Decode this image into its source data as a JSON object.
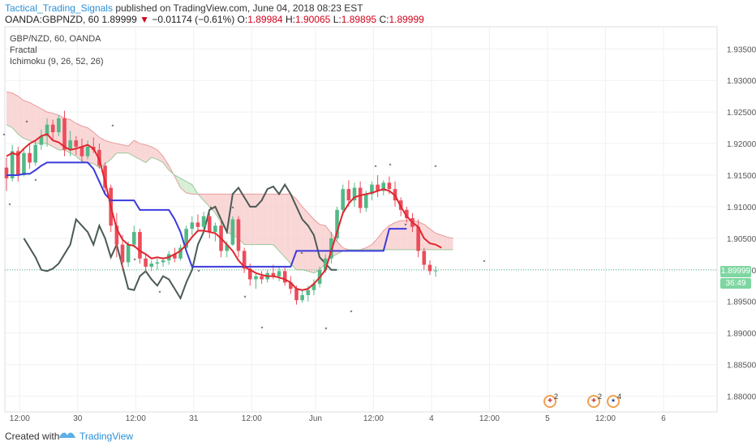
{
  "header": {
    "author": "Tactical_Trading_Signals",
    "published": "published on TradingView.com, June 04, 2018 08:23 EST"
  },
  "ohlc": {
    "symbol": "OANDA:GBPNZD, 60",
    "last": "1.89999",
    "change": "−0.01174 (−0.61%)",
    "o_label": "O:",
    "o": "1.89984",
    "h_label": "H:",
    "h": "1.90065",
    "l_label": "L:",
    "l": "1.89895",
    "c_label": "C:",
    "c": "1.89999"
  },
  "legend": {
    "line1": "GBP/NZD, 60, OANDA",
    "line2": "Fractal",
    "line3": "Ichimoku (9, 26, 52, 26)"
  },
  "price_tag": "1.89999",
  "time_tag": "36:49",
  "events": [
    {
      "label": "2",
      "icon": "gb-flag-icon"
    },
    {
      "label": "2",
      "icon": "gb-flag-icon"
    },
    {
      "label": "4",
      "icon": "nz-flag-icon"
    }
  ],
  "footer": {
    "created": "Created with",
    "brand": "TradingView"
  },
  "colors": {
    "up": "#53b987",
    "down": "#eb4d5c",
    "conversion": "#e0262f",
    "base": "#3b3bdb",
    "lagging": "#4a5a55",
    "cloud_bear": "#f8c9c9",
    "cloud_bull": "#c8ebc8"
  },
  "chart_data": {
    "type": "candlestick",
    "x_ticks": [
      "12:00",
      "30",
      "12:00",
      "31",
      "12:00",
      "Jun",
      "12:00",
      "4",
      "12:00",
      "5",
      "12:00",
      "6"
    ],
    "y_ticks": [
      "1.93500",
      "1.93000",
      "1.92500",
      "1.92000",
      "1.91500",
      "1.91000",
      "1.90500",
      "1.90000",
      "1.89500",
      "1.89000",
      "1.88500",
      "1.88000"
    ],
    "ylim": [
      1.8775,
      1.9385
    ],
    "last_price": 1.89999,
    "candles": [
      [
        1.9162,
        1.9178,
        1.9125,
        1.9145
      ],
      [
        1.9145,
        1.9198,
        1.914,
        1.9188
      ],
      [
        1.9188,
        1.9195,
        1.914,
        1.915
      ],
      [
        1.915,
        1.9192,
        1.9148,
        1.9185
      ],
      [
        1.9185,
        1.92,
        1.916,
        1.917
      ],
      [
        1.917,
        1.9205,
        1.9165,
        1.9198
      ],
      [
        1.9198,
        1.9222,
        1.919,
        1.9212
      ],
      [
        1.9212,
        1.924,
        1.9195,
        1.923
      ],
      [
        1.923,
        1.9238,
        1.9205,
        1.9218
      ],
      [
        1.9218,
        1.9245,
        1.9212,
        1.924
      ],
      [
        1.924,
        1.9252,
        1.918,
        1.919
      ],
      [
        1.919,
        1.922,
        1.918,
        1.9205
      ],
      [
        1.9205,
        1.9212,
        1.9182,
        1.9195
      ],
      [
        1.9195,
        1.9208,
        1.917,
        1.918
      ],
      [
        1.918,
        1.9205,
        1.9175,
        1.9195
      ],
      [
        1.9195,
        1.921,
        1.9185,
        1.919
      ],
      [
        1.919,
        1.92,
        1.916,
        1.9165
      ],
      [
        1.9165,
        1.917,
        1.912,
        1.913
      ],
      [
        1.913,
        1.9135,
        1.906,
        1.907
      ],
      [
        1.907,
        1.909,
        1.902,
        1.904
      ],
      [
        1.904,
        1.9055,
        1.9,
        1.9012
      ],
      [
        1.9012,
        1.9045,
        1.9005,
        1.904
      ],
      [
        1.904,
        1.907,
        1.9035,
        1.906
      ],
      [
        1.906,
        1.9065,
        1.901,
        1.9018
      ],
      [
        1.9018,
        1.9025,
        1.8995,
        1.9005
      ],
      [
        1.9005,
        1.9015,
        1.8998,
        1.901
      ],
      [
        1.901,
        1.9018,
        1.9,
        1.9012
      ],
      [
        1.9012,
        1.902,
        1.9005,
        1.9015
      ],
      [
        1.9015,
        1.903,
        1.9008,
        1.9025
      ],
      [
        1.9025,
        1.9035,
        1.9012,
        1.9018
      ],
      [
        1.9018,
        1.904,
        1.9015,
        1.9035
      ],
      [
        1.9035,
        1.907,
        1.903,
        1.9065
      ],
      [
        1.9065,
        1.9085,
        1.9055,
        1.9075
      ],
      [
        1.9075,
        1.9088,
        1.906,
        1.9068
      ],
      [
        1.9068,
        1.9092,
        1.906,
        1.9085
      ],
      [
        1.9085,
        1.909,
        1.905,
        1.906
      ],
      [
        1.906,
        1.9075,
        1.9045,
        1.907
      ],
      [
        1.907,
        1.908,
        1.902,
        1.903
      ],
      [
        1.903,
        1.9045,
        1.902,
        1.904
      ],
      [
        1.904,
        1.9085,
        1.9038,
        1.908
      ],
      [
        1.908,
        1.9085,
        1.902,
        1.903
      ],
      [
        1.903,
        1.9035,
        1.8995,
        1.9002
      ],
      [
        1.9002,
        1.901,
        1.8975,
        1.8985
      ],
      [
        1.8985,
        1.8995,
        1.897,
        1.899
      ],
      [
        1.899,
        1.8998,
        1.8978,
        1.8985
      ],
      [
        1.8985,
        1.9,
        1.898,
        1.8995
      ],
      [
        1.8995,
        1.9008,
        1.8985,
        1.899
      ],
      [
        1.899,
        1.9005,
        1.8982,
        1.8998
      ],
      [
        1.8998,
        1.9005,
        1.8975,
        1.898
      ],
      [
        1.898,
        1.899,
        1.8962,
        1.897
      ],
      [
        1.897,
        1.8975,
        1.8945,
        1.8952
      ],
      [
        1.8952,
        1.8968,
        1.8948,
        1.896
      ],
      [
        1.896,
        1.8975,
        1.895,
        1.8968
      ],
      [
        1.8968,
        1.8985,
        1.896,
        1.8978
      ],
      [
        1.8978,
        1.9005,
        1.8972,
        1.9
      ],
      [
        1.9,
        1.9025,
        1.8995,
        1.9018
      ],
      [
        1.9018,
        1.906,
        1.901,
        1.905
      ],
      [
        1.905,
        1.91,
        1.9045,
        1.9095
      ],
      [
        1.9095,
        1.9135,
        1.909,
        1.9128
      ],
      [
        1.9128,
        1.9142,
        1.91,
        1.911
      ],
      [
        1.911,
        1.9138,
        1.91,
        1.913
      ],
      [
        1.913,
        1.914,
        1.909,
        1.9098
      ],
      [
        1.9098,
        1.9125,
        1.9092,
        1.912
      ],
      [
        1.912,
        1.914,
        1.911,
        1.9135
      ],
      [
        1.9135,
        1.915,
        1.9115,
        1.9125
      ],
      [
        1.9125,
        1.9142,
        1.9118,
        1.9138
      ],
      [
        1.9138,
        1.9148,
        1.912,
        1.9128
      ],
      [
        1.9128,
        1.914,
        1.91,
        1.911
      ],
      [
        1.911,
        1.9115,
        1.9085,
        1.9095
      ],
      [
        1.9095,
        1.91,
        1.9075,
        1.9082
      ],
      [
        1.9082,
        1.909,
        1.906,
        1.9068
      ],
      [
        1.9068,
        1.908,
        1.902,
        1.903
      ],
      [
        1.903,
        1.9035,
        1.9,
        1.9008
      ],
      [
        1.9008,
        1.9015,
        1.8992,
        1.8998
      ],
      [
        1.8998,
        1.9006,
        1.8989,
        1.8999
      ]
    ],
    "conversion_line": [
      1.918,
      1.9185,
      1.9182,
      1.9192,
      1.92,
      1.9205,
      1.9212,
      1.9215,
      1.9205,
      1.9202,
      1.9195,
      1.919,
      1.9192,
      1.9195,
      1.9198,
      1.9192,
      1.9175,
      1.914,
      1.91,
      1.9065,
      1.9048,
      1.904,
      1.9038,
      1.903,
      1.9025,
      1.9018,
      1.902,
      1.9018,
      1.902,
      1.9025,
      1.903,
      1.904,
      1.9052,
      1.9062,
      1.9062,
      1.906,
      1.9058,
      1.905,
      1.904,
      1.903,
      1.9015,
      1.9005,
      1.9,
      1.8995,
      1.8992,
      1.899,
      1.899,
      1.8988,
      1.8985,
      1.898,
      1.897,
      1.8968,
      1.897,
      1.8978,
      1.8988,
      1.9,
      1.903,
      1.906,
      1.909,
      1.9105,
      1.9115,
      1.9118,
      1.912,
      1.9122,
      1.9125,
      1.9128,
      1.9125,
      1.9118,
      1.91,
      1.9085,
      1.9075,
      1.9068,
      1.905,
      1.9042,
      1.904,
      1.9035
    ],
    "base_line": [
      1.915,
      1.915,
      1.915,
      1.9152,
      1.9152,
      1.9158,
      1.9165,
      1.917,
      1.917,
      1.917,
      1.917,
      1.917,
      1.917,
      1.917,
      1.917,
      1.916,
      1.914,
      1.912,
      1.911,
      1.911,
      1.911,
      1.911,
      1.911,
      1.9095,
      1.9095,
      1.9095,
      1.9095,
      1.9095,
      1.9095,
      1.908,
      1.906,
      1.903,
      1.9005,
      1.9005,
      1.9005,
      1.9005,
      1.9005,
      1.9005,
      1.9005,
      1.9005,
      1.9005,
      1.9005,
      1.9005,
      1.9005,
      1.9005,
      1.9005,
      1.9005,
      1.9005,
      1.9005,
      1.9005,
      1.903,
      1.903,
      1.903,
      1.903,
      1.903,
      1.903,
      1.903,
      1.903,
      1.903,
      1.903,
      1.903,
      1.903,
      1.903,
      1.903,
      1.903,
      1.903,
      1.9065,
      1.9065,
      1.9065,
      1.9065
    ],
    "lagging_span": [
      1.905,
      1.9035,
      1.902,
      1.9,
      1.8998,
      1.9002,
      1.901,
      1.9025,
      1.904,
      1.908,
      1.907,
      1.906,
      1.904,
      1.907,
      1.905,
      1.902,
      1.904,
      1.9005,
      1.897,
      1.8968,
      1.899,
      1.8998,
      1.8985,
      1.8975,
      1.899,
      1.8985,
      1.897,
      1.8955,
      1.898,
      1.9,
      1.904,
      1.906,
      1.9095,
      1.91,
      1.908,
      1.906,
      1.912,
      1.913,
      1.9115,
      1.91,
      1.91,
      1.911,
      1.9128,
      1.9132,
      1.912,
      1.9135,
      1.912,
      1.91,
      1.908,
      1.907,
      1.9055,
      1.902,
      1.901,
      1.9,
      1.9
    ],
    "cloud_span_a": [
      1.9282,
      1.928,
      1.9275,
      1.9268,
      1.9265,
      1.926,
      1.9255,
      1.925,
      1.9248,
      1.9245,
      1.924,
      1.9238,
      1.9232,
      1.9228,
      1.9225,
      1.9218,
      1.921,
      1.9205,
      1.9202,
      1.92,
      1.9198,
      1.9196,
      1.9205,
      1.92,
      1.9198,
      1.9195,
      1.919,
      1.918,
      1.9165,
      1.9148,
      1.913,
      1.9122,
      1.912,
      1.912,
      1.912,
      1.912,
      1.912,
      1.912,
      1.912,
      1.912,
      1.912,
      1.912,
      1.912,
      1.912,
      1.912,
      1.912,
      1.912,
      1.912,
      1.912,
      1.912,
      1.9112,
      1.91,
      1.909,
      1.908,
      1.9072,
      1.907,
      1.9058,
      1.9045,
      1.9035,
      1.9032,
      1.903,
      1.9032,
      1.9035,
      1.904,
      1.905,
      1.9062,
      1.907,
      1.9075,
      1.9078,
      1.9078,
      1.9078,
      1.9076,
      1.9072,
      1.9065,
      1.9058,
      1.9055,
      1.9052,
      1.905
    ],
    "cloud_span_b": [
      1.923,
      1.9225,
      1.9215,
      1.9208,
      1.9205,
      1.92,
      1.92,
      1.92,
      1.9195,
      1.919,
      1.919,
      1.9185,
      1.918,
      1.9172,
      1.917,
      1.9168,
      1.9162,
      1.9168,
      1.9175,
      1.9185,
      1.9185,
      1.9185,
      1.918,
      1.9175,
      1.917,
      1.9178,
      1.9175,
      1.917,
      1.9158,
      1.915,
      1.9145,
      1.914,
      1.9135,
      1.912,
      1.911,
      1.91,
      1.909,
      1.9075,
      1.906,
      1.9055,
      1.905,
      1.904,
      1.904,
      1.904,
      1.904,
      1.904,
      1.904,
      1.903,
      1.902,
      1.901,
      1.9,
      1.9,
      1.8998,
      1.8995,
      1.9,
      1.901,
      1.902,
      1.9025,
      1.903,
      1.9032,
      1.9032,
      1.9032,
      1.9032,
      1.9032,
      1.9032,
      1.9032,
      1.9032,
      1.9032,
      1.9032,
      1.9032,
      1.9032,
      1.9032,
      1.9032,
      1.9032,
      1.9032,
      1.9032,
      1.9032,
      1.9032
    ]
  }
}
